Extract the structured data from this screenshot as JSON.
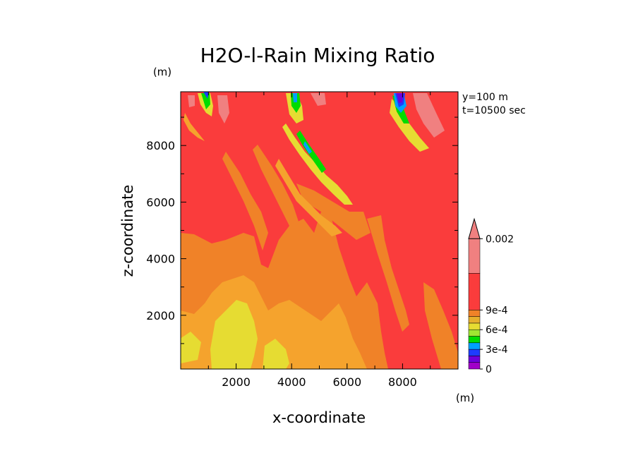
{
  "chart_data": {
    "type": "heatmap",
    "title": "H2O-l-Rain Mixing Ratio",
    "xlabel": "x-coordinate",
    "ylabel": "z-coordinate",
    "x_unit": "(m)",
    "y_unit": "(m)",
    "annotations": [
      "y=100 m",
      "t=10500 sec"
    ],
    "xlim": [
      0,
      10000
    ],
    "ylim": [
      100,
      9900
    ],
    "x_ticks": [
      2000,
      4000,
      6000,
      8000
    ],
    "y_ticks": [
      2000,
      4000,
      6000,
      8000
    ],
    "x_tick_labels": [
      "2000",
      "4000",
      "6000",
      "8000"
    ],
    "y_tick_labels": [
      "2000",
      "4000",
      "6000",
      "8000"
    ],
    "colorbar": {
      "levels": [
        0,
        0.0001,
        0.0002,
        0.0003,
        0.0004,
        0.0005,
        0.0006,
        0.0007,
        0.0008,
        0.0009,
        0.001,
        0.002
      ],
      "colors": [
        "#a000c8",
        "#6e00dc",
        "#1e3cff",
        "#00a0ff",
        "#00dc00",
        "#a0e632",
        "#e6dc32",
        "#e6af2d",
        "#f08228",
        "#fa3c3c",
        "#f08080"
      ],
      "labels": [
        {
          "value": 0,
          "text": "0"
        },
        {
          "value": 0.0003,
          "text": "3e-4"
        },
        {
          "value": 0.0006,
          "text": "6e-4"
        },
        {
          "value": 0.0009,
          "text": "9e-4"
        },
        {
          "value": 0.002,
          "text": "0.002"
        }
      ],
      "extend": "max"
    },
    "field_description_levels_by_region": [
      {
        "x": [
          0,
          10000
        ],
        "z": [
          5000,
          9900
        ],
        "level_index": 9
      },
      {
        "x": [
          0,
          3000
        ],
        "z": [
          100,
          4800
        ],
        "level_index": 8
      },
      {
        "x": [
          1500,
          3800
        ],
        "z": [
          100,
          3500
        ],
        "level_index": 6
      },
      {
        "x": [
          6000,
          10000
        ],
        "z": [
          100,
          3500
        ],
        "level_index": 9
      }
    ]
  }
}
